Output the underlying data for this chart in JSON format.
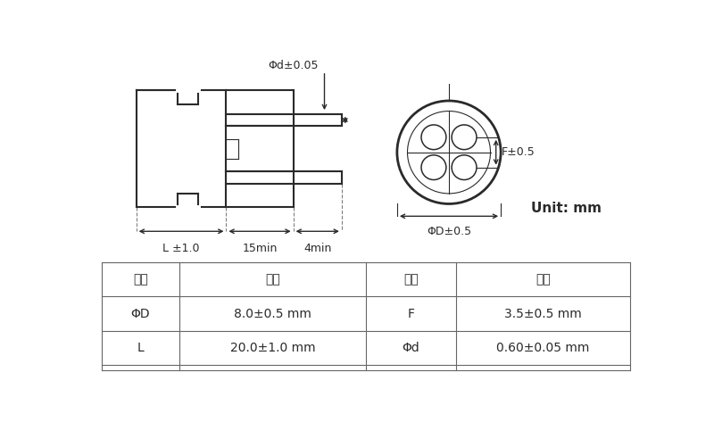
{
  "bg_color": "#ffffff",
  "line_color": "#2a2a2a",
  "table_header": [
    "项目",
    "标准",
    "项目",
    "标准"
  ],
  "table_rows": [
    [
      "ΦD",
      "8.0±0.5 mm",
      "F",
      "3.5±0.5 mm"
    ],
    [
      "L",
      "20.0±1.0 mm",
      "Φd",
      "0.60±0.05 mm"
    ]
  ],
  "dim_phi_d": "Φd±0.05",
  "dim_L": "L ±1.0",
  "dim_15min": "15min",
  "dim_4min": "4min",
  "dim_phi_D": "ΦD±0.5",
  "dim_F": "F±0.5",
  "dim_unit": "Unit: mm",
  "font_size_dim": 9,
  "font_size_table": 10,
  "font_size_unit": 11
}
